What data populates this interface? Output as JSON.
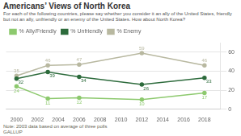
{
  "chart_data": {
    "type": "line",
    "title": "Americans’ Views of North Korea",
    "subtitle": "For each of the following countries, please say whether you consider it an ally of the United States, friendly\nbut not an ally, unfriendly or an enemy of the United States. How about North Korea?",
    "annotations": [
      "Note: 2003 data based on average of three polls",
      "GALLUP"
    ],
    "x": [
      2000,
      2003,
      2006,
      2012,
      2018
    ],
    "series": [
      {
        "name": "% Ally/Friendly",
        "color": "#8dc96e",
        "values": [
          24,
          11,
          12,
          10,
          17
        ]
      },
      {
        "name": "% Unfriendly",
        "color": "#2d6b3c",
        "values": [
          32,
          39,
          34,
          26,
          33
        ]
      },
      {
        "name": "% Enemy",
        "color": "#b8b8a0",
        "values": [
          35,
          46,
          47,
          59,
          46
        ]
      }
    ],
    "xlim": [
      1999,
      2019.5
    ],
    "xticks": [
      2000,
      2002,
      2004,
      2006,
      2008,
      2010,
      2012,
      2014,
      2016,
      2018
    ],
    "ylim": [
      0,
      70
    ],
    "yticks": [
      0,
      20,
      40,
      60
    ],
    "grid": true,
    "legend": "top",
    "data_labels": true,
    "marker": "circle"
  }
}
